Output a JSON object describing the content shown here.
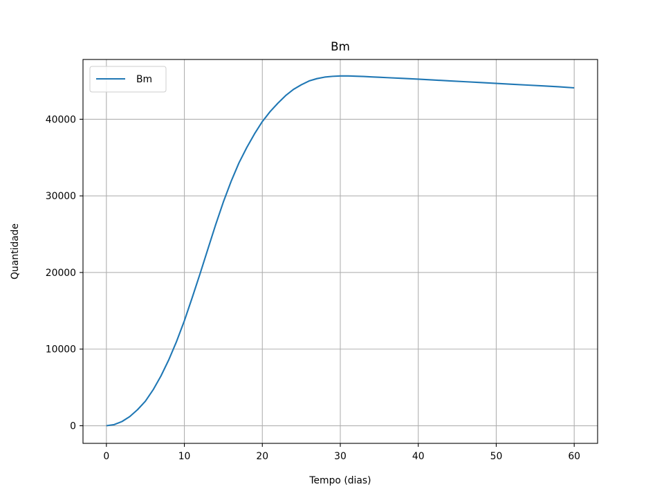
{
  "chart_data": {
    "type": "line",
    "title": "Bm",
    "xlabel": "Tempo (dias)",
    "ylabel": "Quantidade",
    "xlim": [
      -3,
      63
    ],
    "ylim": [
      -2300,
      47800
    ],
    "xticks": [
      0,
      10,
      20,
      30,
      40,
      50,
      60
    ],
    "xtick_labels": [
      "0",
      "10",
      "20",
      "30",
      "40",
      "50",
      "60"
    ],
    "yticks": [
      0,
      10000,
      20000,
      30000,
      40000
    ],
    "ytick_labels": [
      "0",
      "10000",
      "20000",
      "30000",
      "40000"
    ],
    "grid": true,
    "legend_position": "upper-left",
    "series": [
      {
        "name": "Bm",
        "color": "#1f77b4",
        "x": [
          0,
          1,
          2,
          3,
          4,
          5,
          6,
          7,
          8,
          9,
          10,
          11,
          12,
          13,
          14,
          15,
          16,
          17,
          18,
          19,
          20,
          21,
          22,
          23,
          24,
          25,
          26,
          27,
          28,
          29,
          30,
          31,
          32,
          33,
          34,
          35,
          36,
          38,
          40,
          42,
          44,
          46,
          48,
          50,
          52,
          54,
          56,
          58,
          60
        ],
        "values": [
          0,
          150,
          550,
          1200,
          2100,
          3200,
          4700,
          6500,
          8600,
          11000,
          13700,
          16700,
          19800,
          23000,
          26200,
          29200,
          31900,
          34300,
          36300,
          38100,
          39700,
          41000,
          42100,
          43100,
          43900,
          44500,
          45000,
          45300,
          45500,
          45600,
          45650,
          45650,
          45620,
          45580,
          45530,
          45480,
          45430,
          45330,
          45230,
          45120,
          45010,
          44900,
          44790,
          44680,
          44570,
          44460,
          44350,
          44240,
          44100
        ]
      }
    ]
  }
}
